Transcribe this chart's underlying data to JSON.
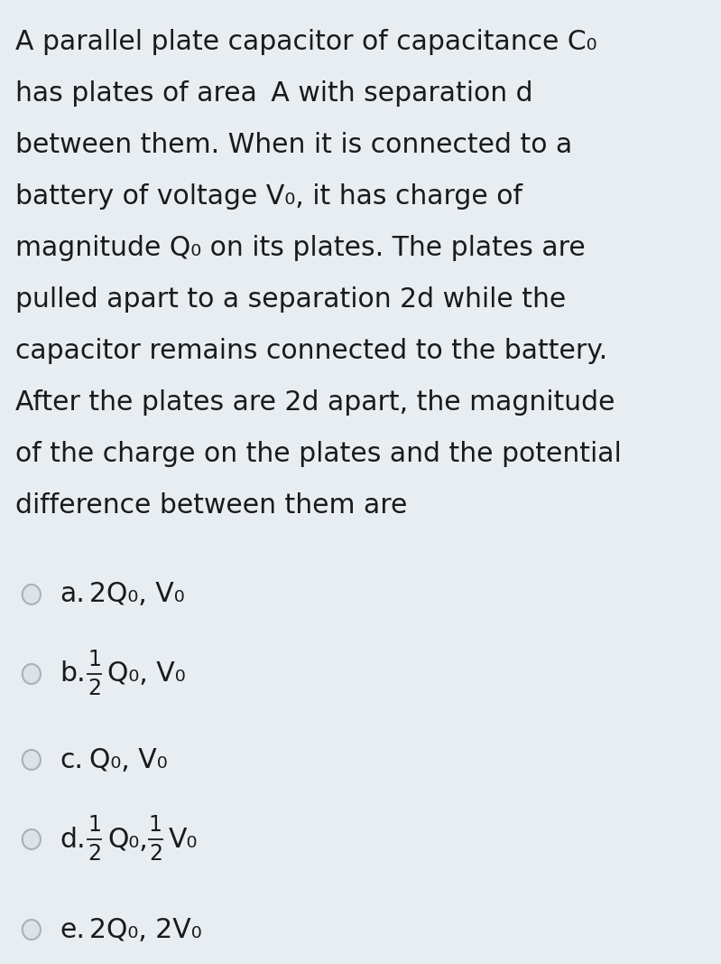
{
  "background_color": "#e8edf2",
  "text_color": "#1a1a1a",
  "circle_edge_color": "#aab0bb",
  "circle_face_color": "#dde2e8",
  "font_family": "DejaVu Sans",
  "para_lines": [
    "A parallel plate capacitor of capacitance C₀",
    "has plates of area  A with separation d",
    "between them. When it is connected to a",
    "battery of voltage V₀, it has charge of",
    "magnitude Q₀ on its plates. The plates are",
    "pulled apart to a separation 2d while the",
    "capacitor remains connected to the battery.",
    "After the plates are 2d apart, the magnitude",
    "of the charge on the plates and the potential",
    "difference between them are"
  ],
  "options": [
    {
      "label": "a.",
      "type": "simple",
      "text": "2Q₀, V₀"
    },
    {
      "label": "b.",
      "type": "fraction",
      "pre": "",
      "numer": "1",
      "denom": "2",
      "post": "Q₀, V₀"
    },
    {
      "label": "c.",
      "type": "simple",
      "text": "Q₀, V₀"
    },
    {
      "label": "d.",
      "type": "two_fractions",
      "numer1": "1",
      "denom1": "2",
      "mid": "Q₀,",
      "numer2": "1",
      "denom2": "2",
      "post": "V₀"
    },
    {
      "label": "e.",
      "type": "simple",
      "text": "2Q₀, 2V₀"
    }
  ]
}
